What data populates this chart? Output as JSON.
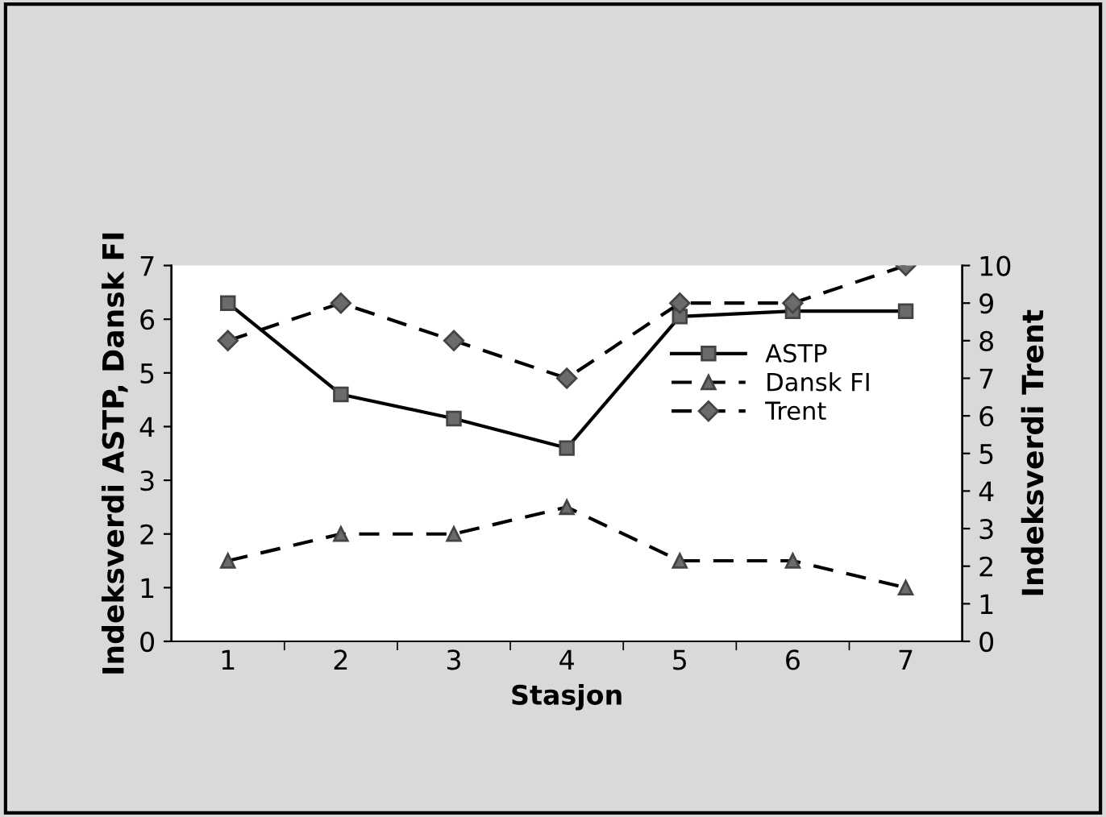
{
  "chart_data": {
    "type": "line",
    "xlabel": "Stasjon",
    "ylabel": "Indeksverdi ASTP, Dansk FI",
    "y2label": "Indeksverdi Trent",
    "categories": [
      "1",
      "2",
      "3",
      "4",
      "5",
      "6",
      "7"
    ],
    "series": [
      {
        "name": "ASTP",
        "color": "#000000",
        "marker": "square",
        "line_style": "solid",
        "values": [
          6.3,
          4.6,
          4.15,
          3.6,
          6.05,
          6.15,
          6.15
        ]
      },
      {
        "name": "Dansk FI",
        "color": "#000000",
        "marker": "triangle",
        "line_style": "dashed",
        "values": [
          1.5,
          2.0,
          2.0,
          2.5,
          1.5,
          1.5,
          1.0
        ]
      },
      {
        "name": "Trent",
        "color": "#000000",
        "marker": "diamond",
        "line_style": "dashed",
        "axis": "y2",
        "values": [
          8,
          9,
          8,
          7,
          9,
          9,
          10
        ]
      }
    ],
    "ylim": [
      0,
      7
    ],
    "yticks": [
      0,
      1,
      2,
      3,
      4,
      5,
      6,
      7
    ],
    "y2lim": [
      0,
      10
    ],
    "y2ticks": [
      0,
      1,
      2,
      3,
      4,
      5,
      6,
      7,
      8,
      9,
      10
    ],
    "grid": false,
    "legend": "top right"
  }
}
